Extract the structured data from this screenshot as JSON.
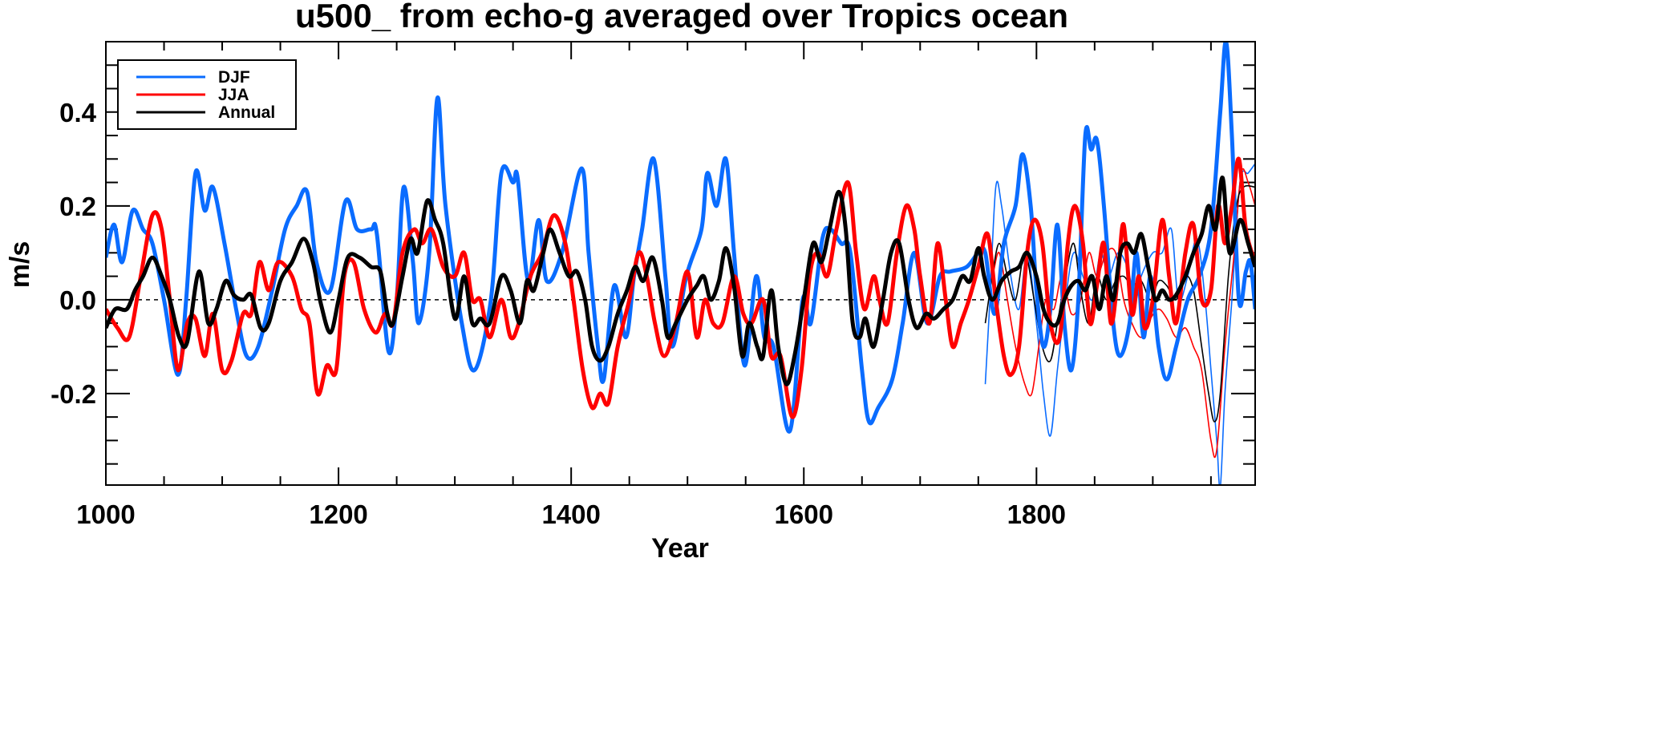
{
  "chart_data": {
    "type": "line",
    "title": "u500_ from echo-g averaged over Tropics ocean",
    "xlabel": "Year",
    "ylabel": "m/s",
    "xlim": [
      1000,
      1988
    ],
    "ylim": [
      -0.395,
      0.55
    ],
    "xticks": [
      1000,
      1200,
      1400,
      1600,
      1800
    ],
    "xtick_labels": [
      "1000",
      "1200",
      "1400",
      "1600",
      "1800"
    ],
    "yticks": [
      -0.2,
      0.0,
      0.2,
      0.4
    ],
    "ytick_labels": [
      "-0.2",
      "0.0",
      "0.2",
      "0.4"
    ],
    "zero_line": "dashed",
    "grid": false,
    "legend_position": "top-left",
    "series": [
      {
        "name": "DJF",
        "color": "#0a6cff",
        "style": "thick",
        "in_legend": true,
        "x": [
          1000,
          1007,
          1014,
          1023,
          1032,
          1040,
          1050,
          1062,
          1069,
          1077,
          1085,
          1092,
          1102,
          1112,
          1121,
          1131,
          1143,
          1154,
          1164,
          1173,
          1181,
          1193,
          1206,
          1216,
          1228,
          1233,
          1243,
          1250,
          1256,
          1264,
          1269,
          1278,
          1285,
          1292,
          1306,
          1317,
          1331,
          1340,
          1350,
          1354,
          1363,
          1372,
          1379,
          1392,
          1409,
          1415,
          1423,
          1428,
          1437,
          1447,
          1454,
          1461,
          1471,
          1481,
          1487,
          1499,
          1512,
          1517,
          1525,
          1533,
          1540,
          1549,
          1559,
          1566,
          1574,
          1588,
          1599,
          1606,
          1616,
          1623,
          1632,
          1640,
          1650,
          1656,
          1664,
          1676,
          1685,
          1695,
          1706,
          1717,
          1726,
          1740,
          1750,
          1756,
          1764,
          1772,
          1782,
          1788,
          1795,
          1800,
          1806,
          1812,
          1818,
          1824,
          1830,
          1836,
          1842,
          1847,
          1852,
          1858,
          1866,
          1872,
          1880,
          1886,
          1892,
          1898,
          1905,
          1912,
          1920,
          1930,
          1940,
          1950,
          1958,
          1963,
          1968,
          1974,
          1980,
          1984,
          1988
        ],
        "y": [
          0.09,
          0.16,
          0.08,
          0.19,
          0.15,
          0.12,
          0.0,
          -0.16,
          0.0,
          0.27,
          0.19,
          0.24,
          0.12,
          -0.02,
          -0.12,
          -0.1,
          0.02,
          0.15,
          0.2,
          0.23,
          0.08,
          0.02,
          0.21,
          0.15,
          0.15,
          0.14,
          -0.11,
          0.0,
          0.24,
          0.08,
          -0.05,
          0.1,
          0.43,
          0.2,
          -0.05,
          -0.15,
          0.0,
          0.27,
          0.25,
          0.26,
          0.04,
          0.17,
          0.04,
          0.1,
          0.28,
          0.1,
          -0.1,
          -0.17,
          0.03,
          -0.08,
          0.05,
          0.15,
          0.3,
          0.05,
          -0.1,
          0.05,
          0.15,
          0.27,
          0.2,
          0.3,
          0.1,
          -0.14,
          0.05,
          -0.08,
          -0.1,
          -0.28,
          0.0,
          -0.05,
          0.13,
          0.15,
          0.12,
          0.1,
          -0.15,
          -0.26,
          -0.23,
          -0.17,
          -0.05,
          0.1,
          -0.05,
          0.05,
          0.06,
          0.07,
          0.1,
          0.1,
          -0.03,
          0.12,
          0.2,
          0.31,
          0.2,
          0.02,
          -0.1,
          -0.02,
          0.16,
          -0.05,
          -0.15,
          0.0,
          0.35,
          0.32,
          0.34,
          0.2,
          -0.05,
          -0.12,
          -0.05,
          0.1,
          -0.08,
          0.05,
          -0.1,
          -0.17,
          -0.1,
          0.0,
          0.05,
          0.15,
          0.4,
          0.55,
          0.35,
          0.0,
          0.06,
          0.08,
          -0.02
        ]
      },
      {
        "name": "JJA",
        "color": "#ff0000",
        "style": "thick",
        "in_legend": true,
        "x": [
          1000,
          1010,
          1020,
          1030,
          1040,
          1048,
          1055,
          1062,
          1070,
          1077,
          1085,
          1092,
          1100,
          1108,
          1118,
          1125,
          1132,
          1140,
          1148,
          1160,
          1168,
          1175,
          1182,
          1190,
          1198,
          1205,
          1213,
          1222,
          1232,
          1240,
          1247,
          1255,
          1265,
          1272,
          1280,
          1290,
          1300,
          1308,
          1315,
          1322,
          1330,
          1340,
          1348,
          1355,
          1365,
          1375,
          1385,
          1395,
          1402,
          1410,
          1418,
          1425,
          1432,
          1440,
          1450,
          1458,
          1465,
          1472,
          1480,
          1490,
          1500,
          1508,
          1515,
          1522,
          1530,
          1540,
          1548,
          1555,
          1565,
          1572,
          1580,
          1590,
          1598,
          1605,
          1612,
          1620,
          1628,
          1638,
          1645,
          1652,
          1660,
          1665,
          1672,
          1680,
          1688,
          1695,
          1700,
          1708,
          1715,
          1722,
          1728,
          1735,
          1742,
          1750,
          1758,
          1765,
          1772,
          1778,
          1785,
          1792,
          1798,
          1805,
          1812,
          1820,
          1827,
          1833,
          1840,
          1846,
          1852,
          1858,
          1864,
          1870,
          1875,
          1882,
          1888,
          1893,
          1900,
          1908,
          1914,
          1920,
          1928,
          1935,
          1942,
          1950,
          1956,
          1962,
          1968,
          1974,
          1980,
          1988
        ],
        "y": [
          -0.02,
          -0.06,
          -0.08,
          0.05,
          0.18,
          0.15,
          0.0,
          -0.15,
          -0.05,
          -0.04,
          -0.12,
          -0.03,
          -0.15,
          -0.13,
          -0.03,
          -0.03,
          0.08,
          0.02,
          0.08,
          0.05,
          -0.02,
          -0.05,
          -0.2,
          -0.14,
          -0.15,
          0.05,
          0.08,
          -0.02,
          -0.07,
          -0.03,
          -0.05,
          0.1,
          0.15,
          0.12,
          0.15,
          0.07,
          0.05,
          0.1,
          0.0,
          0.0,
          -0.08,
          0.0,
          -0.08,
          -0.05,
          0.05,
          0.1,
          0.18,
          0.12,
          0.0,
          -0.15,
          -0.23,
          -0.2,
          -0.22,
          -0.1,
          0.0,
          0.1,
          0.05,
          -0.05,
          -0.12,
          -0.05,
          0.06,
          -0.08,
          0.0,
          -0.05,
          -0.05,
          0.05,
          -0.03,
          -0.05,
          0.0,
          -0.12,
          -0.12,
          -0.25,
          -0.15,
          0.05,
          0.1,
          0.05,
          0.15,
          0.25,
          0.1,
          -0.02,
          0.05,
          0.0,
          -0.05,
          0.1,
          0.2,
          0.15,
          0.05,
          -0.05,
          0.12,
          0.0,
          -0.1,
          -0.05,
          0.0,
          0.07,
          0.14,
          0.0,
          -0.12,
          -0.16,
          -0.1,
          0.1,
          0.17,
          0.12,
          -0.05,
          -0.08,
          0.12,
          0.2,
          0.12,
          -0.05,
          0.03,
          0.12,
          -0.05,
          0.05,
          0.16,
          -0.03,
          0.05,
          -0.06,
          0.0,
          0.17,
          0.05,
          -0.05,
          0.1,
          0.16,
          0.0,
          0.02,
          0.2,
          0.12,
          0.2,
          0.3,
          0.15,
          0.08
        ]
      },
      {
        "name": "Annual",
        "color": "#000000",
        "style": "thick",
        "in_legend": true,
        "x": [
          1000,
          1008,
          1018,
          1025,
          1032,
          1040,
          1048,
          1055,
          1063,
          1070,
          1080,
          1088,
          1095,
          1103,
          1110,
          1118,
          1125,
          1133,
          1140,
          1150,
          1160,
          1170,
          1178,
          1185,
          1193,
          1200,
          1208,
          1218,
          1228,
          1236,
          1242,
          1247,
          1255,
          1262,
          1268,
          1276,
          1283,
          1290,
          1300,
          1308,
          1315,
          1322,
          1330,
          1340,
          1348,
          1356,
          1362,
          1368,
          1376,
          1382,
          1390,
          1398,
          1405,
          1412,
          1418,
          1425,
          1432,
          1440,
          1448,
          1455,
          1462,
          1470,
          1478,
          1483,
          1490,
          1500,
          1508,
          1514,
          1520,
          1527,
          1533,
          1540,
          1547,
          1553,
          1560,
          1565,
          1572,
          1578,
          1585,
          1592,
          1600,
          1608,
          1615,
          1622,
          1630,
          1636,
          1642,
          1648,
          1653,
          1660,
          1668,
          1675,
          1682,
          1690,
          1697,
          1705,
          1712,
          1720,
          1728,
          1736,
          1743,
          1750,
          1755,
          1762,
          1770,
          1778,
          1785,
          1792,
          1800,
          1806,
          1812,
          1818,
          1824,
          1830,
          1836,
          1842,
          1848,
          1854,
          1860,
          1866,
          1872,
          1878,
          1884,
          1890,
          1896,
          1902,
          1908,
          1914,
          1920,
          1928,
          1935,
          1942,
          1948,
          1954,
          1960,
          1966,
          1975,
          1982,
          1988
        ],
        "y": [
          -0.06,
          -0.02,
          -0.02,
          0.02,
          0.05,
          0.09,
          0.05,
          0.0,
          -0.08,
          -0.09,
          0.06,
          -0.05,
          -0.02,
          0.04,
          0.01,
          0.0,
          0.01,
          -0.06,
          -0.05,
          0.04,
          0.08,
          0.13,
          0.08,
          -0.01,
          -0.07,
          0.0,
          0.09,
          0.09,
          0.07,
          0.06,
          -0.03,
          -0.05,
          0.05,
          0.13,
          0.1,
          0.21,
          0.17,
          0.12,
          -0.04,
          0.05,
          -0.05,
          -0.04,
          -0.05,
          0.05,
          0.02,
          -0.05,
          0.04,
          0.02,
          0.1,
          0.15,
          0.1,
          0.05,
          0.06,
          0.0,
          -0.1,
          -0.13,
          -0.1,
          -0.03,
          0.02,
          0.07,
          0.04,
          0.09,
          0.0,
          -0.08,
          -0.05,
          0.0,
          0.03,
          0.05,
          0.0,
          0.04,
          0.11,
          0.03,
          -0.12,
          -0.05,
          -0.1,
          -0.12,
          0.02,
          -0.1,
          -0.18,
          -0.12,
          0.0,
          0.12,
          0.08,
          0.15,
          0.23,
          0.15,
          -0.05,
          -0.08,
          -0.04,
          -0.1,
          0.0,
          0.1,
          0.12,
          0.0,
          -0.06,
          -0.03,
          -0.04,
          -0.02,
          0.0,
          0.05,
          0.04,
          0.11,
          0.05,
          0.0,
          0.04,
          0.06,
          0.07,
          0.1,
          0.05,
          -0.02,
          -0.05,
          -0.05,
          0.0,
          0.03,
          0.04,
          0.02,
          0.05,
          -0.02,
          0.05,
          0.0,
          0.1,
          0.12,
          0.1,
          0.14,
          0.07,
          0.0,
          0.02,
          0.0,
          0.01,
          0.05,
          0.1,
          0.14,
          0.2,
          0.15,
          0.26,
          0.1,
          0.17,
          0.12,
          0.07
        ]
      },
      {
        "color": "#0a6cff",
        "style": "thin",
        "in_legend": false,
        "x": [
          1756,
          1760,
          1765,
          1770,
          1778,
          1785,
          1792,
          1800,
          1806,
          1812,
          1818,
          1825,
          1832,
          1840,
          1848,
          1855,
          1862,
          1870,
          1878,
          1885,
          1890,
          1900,
          1908,
          1916,
          1922,
          1930,
          1938,
          1945,
          1950,
          1955,
          1958,
          1962,
          1968,
          1975,
          1982,
          1988
        ],
        "y": [
          -0.18,
          0.0,
          0.24,
          0.2,
          0.05,
          -0.02,
          0.1,
          -0.05,
          -0.2,
          -0.29,
          -0.15,
          0.0,
          0.1,
          0.05,
          0.0,
          0.1,
          0.05,
          0.1,
          0.07,
          0.0,
          0.05,
          0.1,
          0.1,
          0.15,
          0.0,
          0.05,
          0.13,
          0.0,
          -0.15,
          -0.3,
          -0.4,
          -0.2,
          0.0,
          0.25,
          0.27,
          0.29
        ]
      },
      {
        "color": "#ff0000",
        "style": "thin",
        "in_legend": false,
        "x": [
          1756,
          1762,
          1768,
          1775,
          1782,
          1790,
          1796,
          1802,
          1808,
          1815,
          1822,
          1830,
          1838,
          1845,
          1852,
          1860,
          1868,
          1875,
          1882,
          1890,
          1898,
          1905,
          1912,
          1920,
          1928,
          1935,
          1942,
          1950,
          1955,
          1962,
          1970,
          1976,
          1982,
          1988
        ],
        "y": [
          0.03,
          0.05,
          0.1,
          0.0,
          -0.1,
          -0.18,
          -0.2,
          -0.1,
          0.0,
          -0.02,
          0.05,
          -0.03,
          0.0,
          0.1,
          0.05,
          0.1,
          0.1,
          0.0,
          -0.05,
          -0.08,
          -0.04,
          -0.02,
          -0.04,
          -0.08,
          -0.06,
          -0.1,
          -0.15,
          -0.3,
          -0.32,
          -0.1,
          0.1,
          0.27,
          0.25,
          0.2
        ]
      },
      {
        "color": "#000000",
        "style": "thin",
        "in_legend": false,
        "x": [
          1756,
          1762,
          1768,
          1775,
          1782,
          1790,
          1798,
          1805,
          1812,
          1818,
          1825,
          1832,
          1838,
          1845,
          1852,
          1860,
          1868,
          1875,
          1882,
          1890,
          1898,
          1905,
          1912,
          1920,
          1928,
          1935,
          1942,
          1948,
          1953,
          1958,
          1965,
          1972,
          1978,
          1988
        ],
        "y": [
          -0.05,
          0.05,
          0.12,
          0.05,
          0.0,
          0.1,
          0.0,
          -0.1,
          -0.13,
          -0.05,
          0.05,
          0.12,
          0.02,
          -0.05,
          0.05,
          0.0,
          0.04,
          0.05,
          0.03,
          0.04,
          0.0,
          0.04,
          0.03,
          0.0,
          0.05,
          0.02,
          -0.1,
          -0.2,
          -0.26,
          -0.2,
          0.05,
          0.2,
          0.24,
          0.24
        ]
      }
    ]
  }
}
